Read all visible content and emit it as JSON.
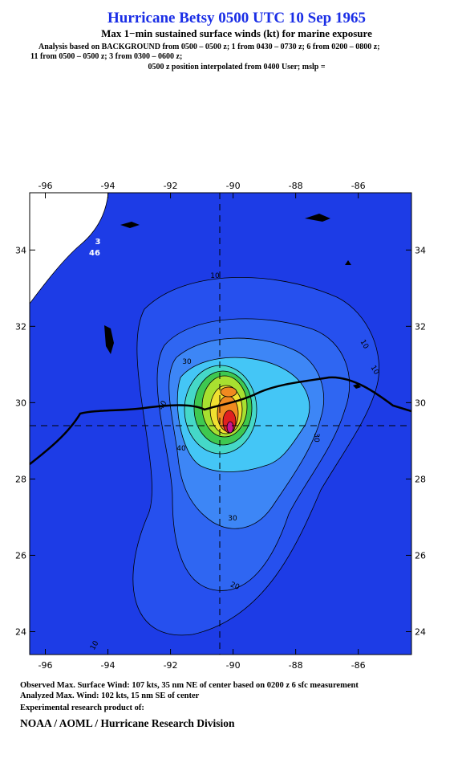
{
  "header": {
    "title": "Hurricane Betsy 0500 UTC 10 Sep 1965",
    "subtitle": "Max 1−min sustained surface winds (kt) for marine exposure",
    "analysis_lines": [
      "Analysis based on  BACKGROUND from 0500 – 0500 z;  1 from 0430 – 0730 z;  6 from 0200 – 0800 z;",
      "11 from 0500 – 0500 z;  3 from 0300 – 0600 z;",
      "0500 z position interpolated from 0400 User; mslp ="
    ]
  },
  "map": {
    "xlim": [
      -96.5,
      -84.3
    ],
    "ylim": [
      23.4,
      35.5
    ],
    "xticks": [
      -96,
      -94,
      -92,
      -90,
      -88,
      -86
    ],
    "yticks": [
      24,
      26,
      28,
      30,
      32,
      34
    ],
    "contour_labels": [
      "10",
      "10",
      "10",
      "10",
      "20",
      "30",
      "30",
      "30",
      "40",
      "40",
      "3",
      "46"
    ]
  },
  "footer": {
    "lines": [
      "Observed Max. Surface Wind: 107 kts, 35 nm NE of center based on 0200 z 6 sfc measurement",
      "Analyzed Max. Wind: 102 kts, 15 nm SE of center",
      "Experimental research product of:"
    ],
    "org": "NOAA / AOML / Hurricane Research Division"
  }
}
